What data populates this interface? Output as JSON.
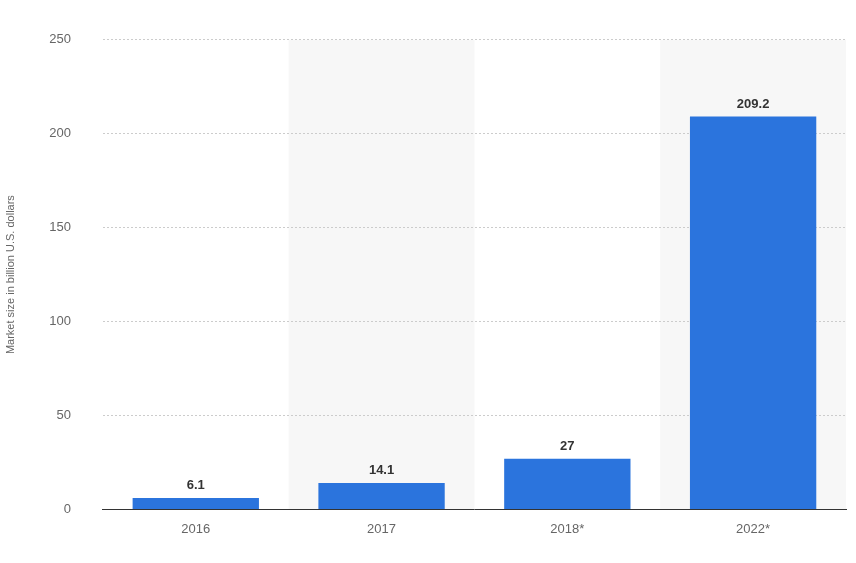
{
  "chart_data": {
    "type": "bar",
    "y_label": "Market size in billion U.S. dollars",
    "categories": [
      "2016",
      "2017",
      "2018*",
      "2022*"
    ],
    "values": [
      6.1,
      14.1,
      27,
      209.2
    ],
    "color": "#2b74dd",
    "ylim": [
      0,
      250
    ],
    "yticks": [
      0,
      50,
      100,
      150,
      200,
      250
    ],
    "grid": true,
    "data_labels": true
  }
}
